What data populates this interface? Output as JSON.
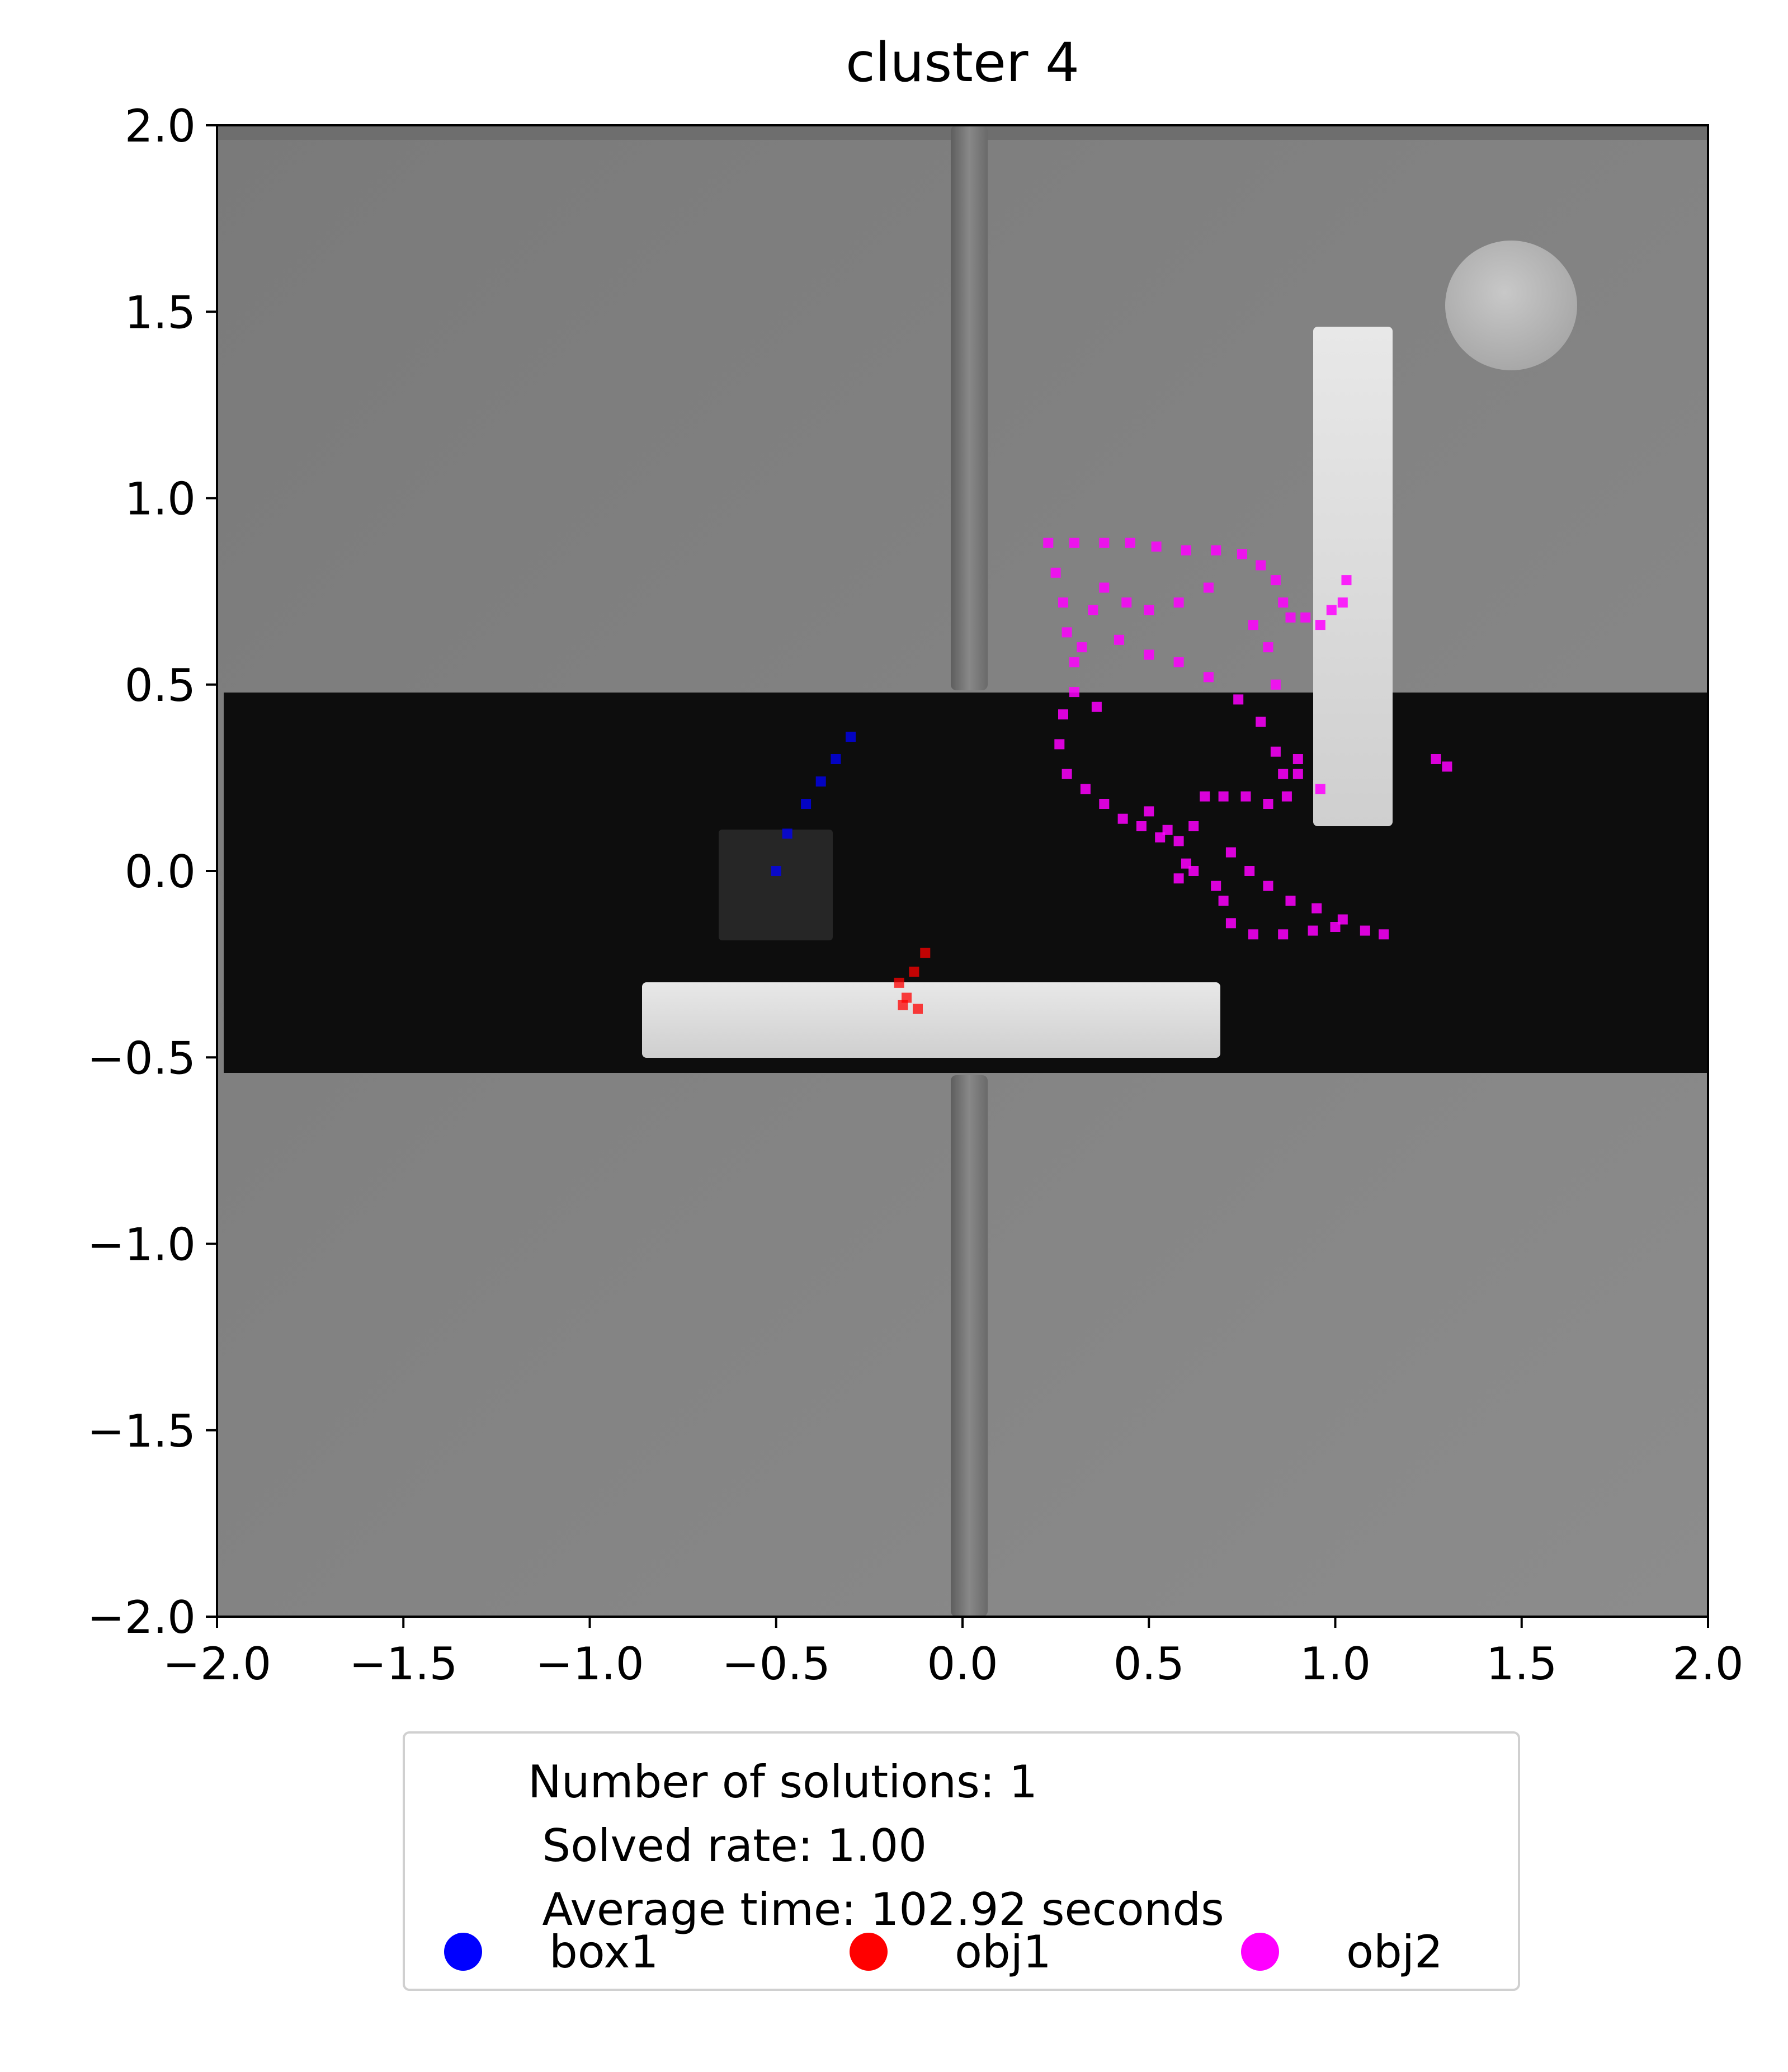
{
  "chart_data": {
    "type": "scatter",
    "title": "cluster 4",
    "xlabel": "",
    "ylabel": "",
    "xlim": [
      -2.0,
      2.0
    ],
    "ylim": [
      -2.0,
      2.0
    ],
    "x_ticks": [
      "−2.0",
      "−1.5",
      "−1.0",
      "−0.5",
      "0.0",
      "0.5",
      "1.0",
      "1.5",
      "2.0"
    ],
    "y_ticks": [
      "2.0",
      "1.5",
      "1.0",
      "0.5",
      "0.0",
      "−0.5",
      "−1.0",
      "−1.5",
      "−2.0"
    ],
    "x_tick_values": [
      -2.0,
      -1.5,
      -1.0,
      -0.5,
      0.0,
      0.5,
      1.0,
      1.5,
      2.0
    ],
    "y_tick_values": [
      2.0,
      1.5,
      1.0,
      0.5,
      0.0,
      -0.5,
      -1.0,
      -1.5,
      -2.0
    ],
    "grid": false,
    "legend_position": "below",
    "background": "rendered top-down simulation scene (grey floor, black corridor, white obstacles)",
    "series": [
      {
        "name": "box1",
        "color": "#0000ff",
        "points": [
          [
            -0.5,
            0.0
          ],
          [
            -0.47,
            0.1
          ],
          [
            -0.42,
            0.18
          ],
          [
            -0.38,
            0.24
          ],
          [
            -0.34,
            0.3
          ],
          [
            -0.3,
            0.36
          ]
        ]
      },
      {
        "name": "obj1",
        "color": "#ff0000",
        "points": [
          [
            -0.1,
            -0.22
          ],
          [
            -0.13,
            -0.27
          ],
          [
            -0.17,
            -0.3
          ],
          [
            -0.15,
            -0.34
          ],
          [
            -0.12,
            -0.37
          ],
          [
            -0.16,
            -0.36
          ]
        ]
      },
      {
        "name": "obj2",
        "color": "#ff00ff",
        "points": [
          [
            0.23,
            0.88
          ],
          [
            0.3,
            0.88
          ],
          [
            0.38,
            0.88
          ],
          [
            0.45,
            0.88
          ],
          [
            0.52,
            0.87
          ],
          [
            0.6,
            0.86
          ],
          [
            0.68,
            0.86
          ],
          [
            0.75,
            0.85
          ],
          [
            0.8,
            0.82
          ],
          [
            0.84,
            0.78
          ],
          [
            0.86,
            0.72
          ],
          [
            0.88,
            0.68
          ],
          [
            0.92,
            0.68
          ],
          [
            0.96,
            0.66
          ],
          [
            0.99,
            0.7
          ],
          [
            1.02,
            0.72
          ],
          [
            1.03,
            0.78
          ],
          [
            0.25,
            0.8
          ],
          [
            0.27,
            0.72
          ],
          [
            0.28,
            0.64
          ],
          [
            0.3,
            0.56
          ],
          [
            0.3,
            0.48
          ],
          [
            0.27,
            0.42
          ],
          [
            0.26,
            0.34
          ],
          [
            0.28,
            0.26
          ],
          [
            0.33,
            0.22
          ],
          [
            0.38,
            0.18
          ],
          [
            0.43,
            0.14
          ],
          [
            0.48,
            0.12
          ],
          [
            0.53,
            0.09
          ],
          [
            0.58,
            0.08
          ],
          [
            0.6,
            0.02
          ],
          [
            0.58,
            -0.02
          ],
          [
            0.62,
            0.12
          ],
          [
            0.65,
            0.2
          ],
          [
            0.7,
            0.2
          ],
          [
            0.76,
            0.2
          ],
          [
            0.82,
            0.18
          ],
          [
            0.87,
            0.2
          ],
          [
            0.9,
            0.26
          ],
          [
            0.72,
            0.05
          ],
          [
            0.77,
            0.0
          ],
          [
            0.82,
            -0.04
          ],
          [
            0.88,
            -0.08
          ],
          [
            0.95,
            -0.1
          ],
          [
            1.02,
            -0.13
          ],
          [
            1.08,
            -0.16
          ],
          [
            1.13,
            -0.17
          ],
          [
            0.7,
            -0.08
          ],
          [
            0.72,
            -0.14
          ],
          [
            0.78,
            -0.17
          ],
          [
            0.86,
            -0.17
          ],
          [
            0.94,
            -0.16
          ],
          [
            1.0,
            -0.15
          ],
          [
            0.35,
            0.7
          ],
          [
            0.42,
            0.62
          ],
          [
            0.5,
            0.58
          ],
          [
            0.58,
            0.56
          ],
          [
            0.66,
            0.52
          ],
          [
            0.74,
            0.46
          ],
          [
            0.8,
            0.4
          ],
          [
            0.84,
            0.32
          ],
          [
            0.86,
            0.26
          ],
          [
            0.66,
            0.76
          ],
          [
            0.58,
            0.72
          ],
          [
            0.5,
            0.7
          ],
          [
            0.44,
            0.72
          ],
          [
            0.38,
            0.76
          ],
          [
            0.32,
            0.6
          ],
          [
            0.36,
            0.44
          ],
          [
            0.5,
            0.16
          ],
          [
            0.55,
            0.11
          ],
          [
            0.62,
            0.0
          ],
          [
            0.68,
            -0.04
          ],
          [
            0.96,
            0.22
          ],
          [
            0.9,
            0.3
          ],
          [
            0.84,
            0.5
          ],
          [
            0.82,
            0.6
          ],
          [
            0.78,
            0.66
          ],
          [
            1.27,
            0.3
          ],
          [
            1.3,
            0.28
          ]
        ]
      }
    ],
    "legend": {
      "stats": "Number of solutions: 1\n Solved rate: 1.00\n Average time: 102.92 seconds",
      "entries": [
        {
          "label": "box1",
          "color": "#0000ff"
        },
        {
          "label": "obj1",
          "color": "#ff0000"
        },
        {
          "label": "obj2",
          "color": "#ff00ff"
        }
      ]
    }
  }
}
